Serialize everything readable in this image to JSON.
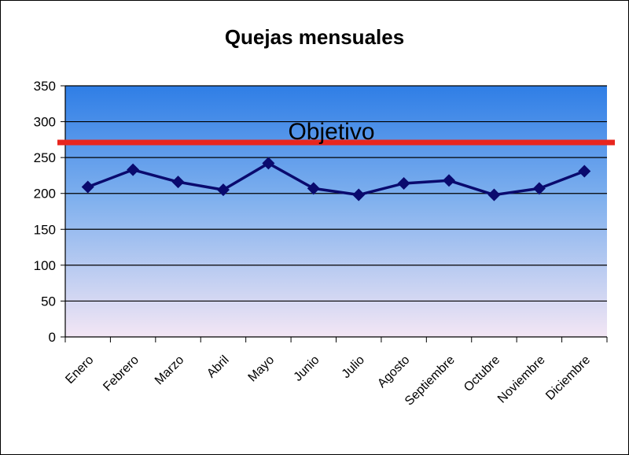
{
  "chart_data": {
    "type": "line",
    "title": "Quejas mensuales",
    "categories": [
      "Enero",
      "Febrero",
      "Marzo",
      "Abril",
      "Mayo",
      "Junio",
      "Julio",
      "Agosto",
      "Septiembre",
      "Octubre",
      "Noviembre",
      "Diciembre"
    ],
    "series": [
      {
        "values": [
          209,
          233,
          216,
          205,
          242,
          207,
          198,
          214,
          218,
          198,
          207,
          231
        ],
        "color": "#0a0a6e"
      }
    ],
    "target": {
      "label": "Objetivo",
      "value": 271,
      "color": "#e8261e"
    },
    "ylim": [
      0,
      350
    ],
    "yticks": [
      "0",
      "50",
      "100",
      "150",
      "200",
      "250",
      "300",
      "350"
    ],
    "grid": true,
    "background_gradient": [
      "#2f7ee6",
      "#f3e6f4"
    ]
  }
}
